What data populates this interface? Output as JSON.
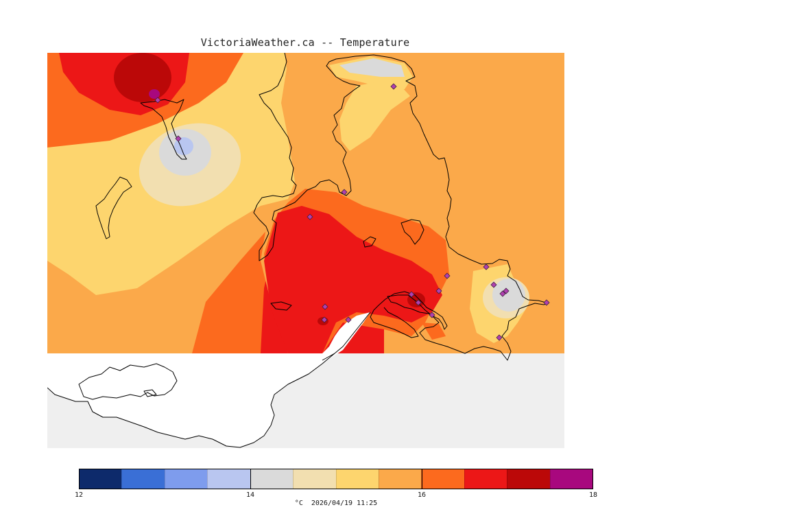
{
  "map": {
    "title": "VictoriaWeather.ca -- Temperature",
    "variable": "Temperature",
    "units": "°C",
    "timestamp": "2026/04/19 11:25",
    "colors": {
      "ocean": "#efefef",
      "no_data_land": "#ffffff",
      "coastline": "#000000",
      "station_marker": "#b040b0"
    }
  },
  "legend": {
    "range": [
      12,
      18
    ],
    "step": 0.5,
    "labels": [
      "12",
      "14",
      "16",
      "18"
    ],
    "colors": [
      "#0d2a6b",
      "#3a6fd6",
      "#7e9ced",
      "#b9c6f0",
      "#dadada",
      "#f2dfb0",
      "#fdd56e",
      "#fba94a",
      "#fc6a1e",
      "#ec1717",
      "#bb0808",
      "#a8087e"
    ]
  },
  "stations": {
    "count": 19,
    "marker_shape": "diamond"
  }
}
